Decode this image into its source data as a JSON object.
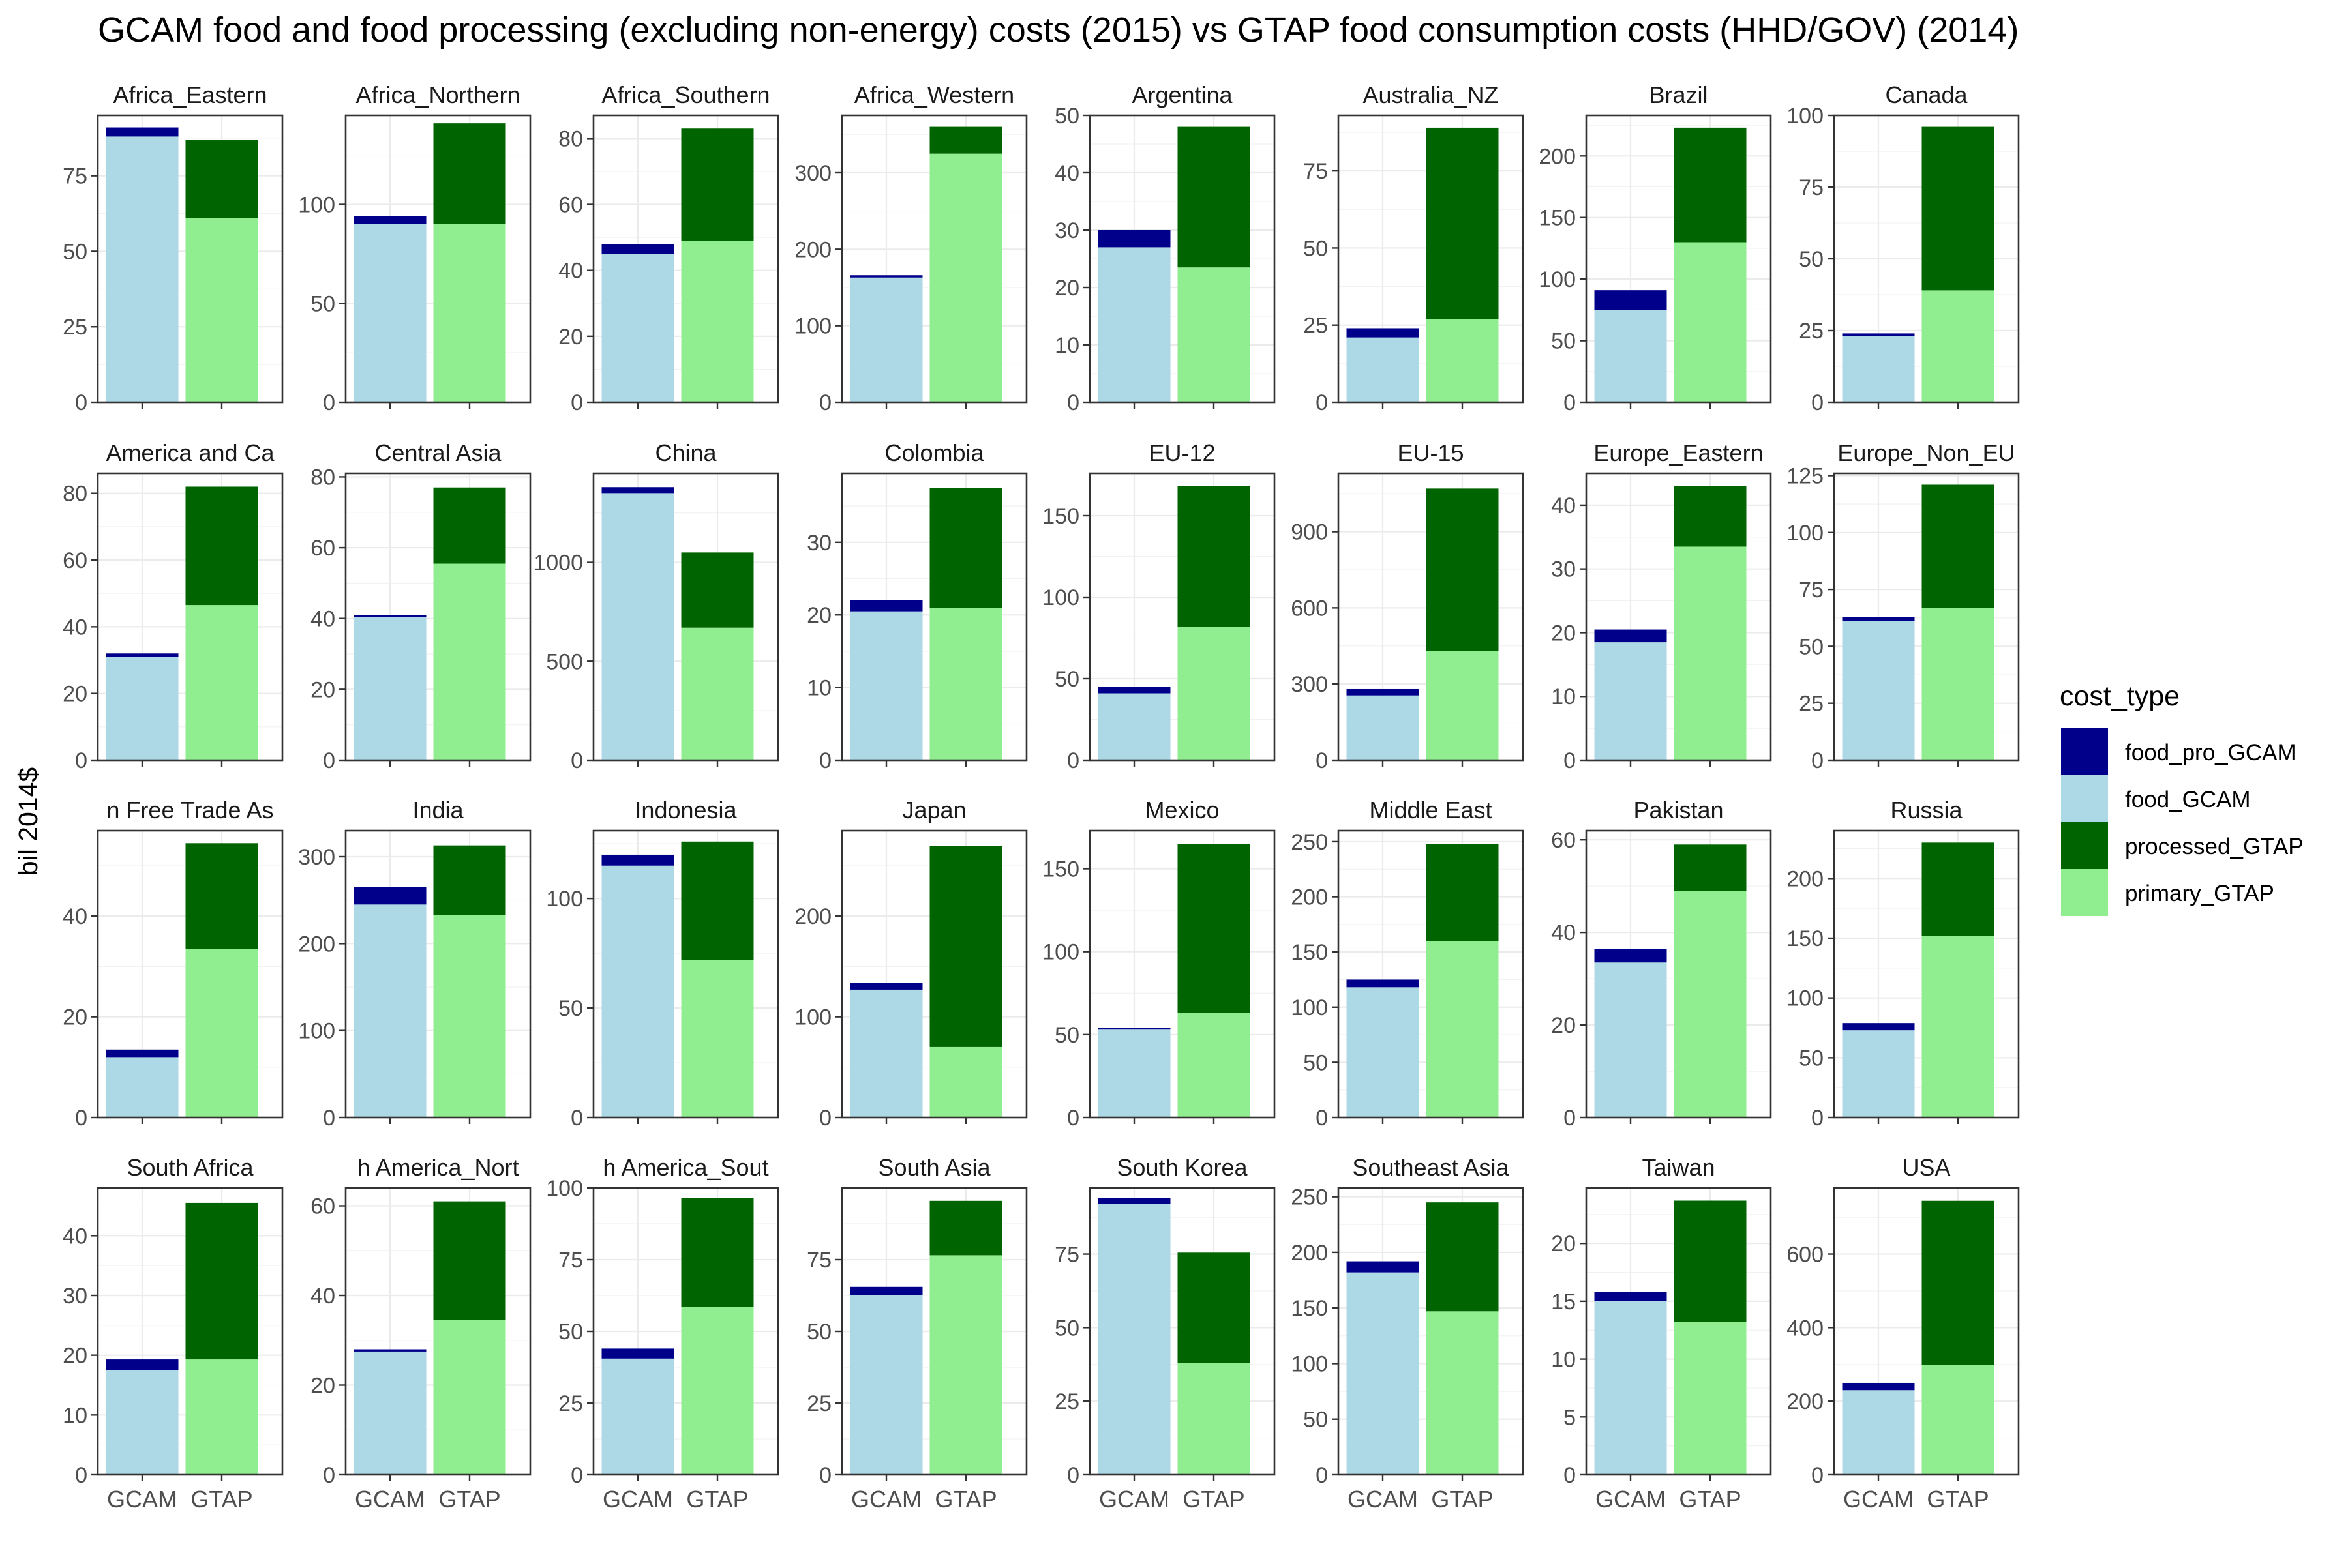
{
  "chart_data": {
    "type": "bar",
    "title": "GCAM food and food processing (excluding non-energy) costs (2015) vs GTAP food consumption costs (HHD/GOV) (2014)",
    "ylabel": "bil 2014$",
    "xlabel": "",
    "categories": [
      "GCAM",
      "GTAP"
    ],
    "stacking": "stacked",
    "grid": true,
    "legend": {
      "title": "cost_type",
      "placement": "right",
      "entries": [
        {
          "label": "food_pro_GCAM",
          "color": "#00008B"
        },
        {
          "label": "food_GCAM",
          "color": "#ADD8E6"
        },
        {
          "label": "processed_GTAP",
          "color": "#006400"
        },
        {
          "label": "primary_GTAP",
          "color": "#90EE90"
        }
      ]
    },
    "panels": [
      {
        "name": "Africa_Eastern",
        "ylim": [
          0,
          95
        ],
        "ticks": [
          0,
          25,
          50,
          75
        ],
        "gcam": {
          "food": 88,
          "food_pro": 3
        },
        "gtap": {
          "primary": 61,
          "processed": 26
        }
      },
      {
        "name": "Africa_Northern",
        "ylim": [
          0,
          145
        ],
        "ticks": [
          0,
          50,
          100
        ],
        "gcam": {
          "food": 90,
          "food_pro": 4
        },
        "gtap": {
          "primary": 90,
          "processed": 51
        }
      },
      {
        "name": "Africa_Southern",
        "ylim": [
          0,
          87
        ],
        "ticks": [
          0,
          20,
          40,
          60,
          80
        ],
        "gcam": {
          "food": 45,
          "food_pro": 3
        },
        "gtap": {
          "primary": 49,
          "processed": 34
        }
      },
      {
        "name": "Africa_Western",
        "ylim": [
          0,
          375
        ],
        "ticks": [
          0,
          100,
          200,
          300
        ],
        "gcam": {
          "food": 163,
          "food_pro": 3
        },
        "gtap": {
          "primary": 325,
          "processed": 35
        }
      },
      {
        "name": "Argentina",
        "ylim": [
          0,
          50
        ],
        "ticks": [
          0,
          10,
          20,
          30,
          40,
          50
        ],
        "gcam": {
          "food": 27,
          "food_pro": 3
        },
        "gtap": {
          "primary": 23.5,
          "processed": 24.5
        }
      },
      {
        "name": "Australia_NZ",
        "ylim": [
          0,
          93
        ],
        "ticks": [
          0,
          25,
          50,
          75
        ],
        "gcam": {
          "food": 21,
          "food_pro": 3
        },
        "gtap": {
          "primary": 27,
          "processed": 62
        }
      },
      {
        "name": "Brazil",
        "ylim": [
          0,
          233
        ],
        "ticks": [
          0,
          50,
          100,
          150,
          200
        ],
        "gcam": {
          "food": 75,
          "food_pro": 16
        },
        "gtap": {
          "primary": 130,
          "processed": 93
        }
      },
      {
        "name": "Canada",
        "ylim": [
          0,
          100
        ],
        "ticks": [
          0,
          25,
          50,
          75,
          100
        ],
        "gcam": {
          "food": 23,
          "food_pro": 1
        },
        "gtap": {
          "primary": 39,
          "processed": 57
        }
      },
      {
        "name": "America and Ca",
        "ylim": [
          0,
          86
        ],
        "ticks": [
          0,
          20,
          40,
          60,
          80
        ],
        "gcam": {
          "food": 31,
          "food_pro": 1
        },
        "gtap": {
          "primary": 46.5,
          "processed": 35.5
        }
      },
      {
        "name": "Central Asia",
        "ylim": [
          0,
          81
        ],
        "ticks": [
          0,
          20,
          40,
          60,
          80
        ],
        "gcam": {
          "food": 40.5,
          "food_pro": 0.5
        },
        "gtap": {
          "primary": 55.5,
          "processed": 21.5
        }
      },
      {
        "name": "China",
        "ylim": [
          0,
          1450
        ],
        "ticks": [
          0,
          500,
          1000
        ],
        "gcam": {
          "food": 1350,
          "food_pro": 30
        },
        "gtap": {
          "primary": 670,
          "processed": 380
        }
      },
      {
        "name": "Colombia",
        "ylim": [
          0,
          39.5
        ],
        "ticks": [
          0,
          10,
          20,
          30
        ],
        "gcam": {
          "food": 20.5,
          "food_pro": 1.5
        },
        "gtap": {
          "primary": 21,
          "processed": 16.5
        }
      },
      {
        "name": "EU-12",
        "ylim": [
          0,
          176
        ],
        "ticks": [
          0,
          50,
          100,
          150
        ],
        "gcam": {
          "food": 41,
          "food_pro": 4
        },
        "gtap": {
          "primary": 82,
          "processed": 86
        }
      },
      {
        "name": "EU-15",
        "ylim": [
          0,
          1130
        ],
        "ticks": [
          0,
          300,
          600,
          900
        ],
        "gcam": {
          "food": 255,
          "food_pro": 25
        },
        "gtap": {
          "primary": 430,
          "processed": 640
        }
      },
      {
        "name": "Europe_Eastern",
        "ylim": [
          0,
          45
        ],
        "ticks": [
          0,
          10,
          20,
          30,
          40
        ],
        "gcam": {
          "food": 18.5,
          "food_pro": 2
        },
        "gtap": {
          "primary": 33.5,
          "processed": 9.5
        }
      },
      {
        "name": "Europe_Non_EU",
        "ylim": [
          0,
          126
        ],
        "ticks": [
          0,
          25,
          50,
          75,
          100,
          125
        ],
        "gcam": {
          "food": 61,
          "food_pro": 2
        },
        "gtap": {
          "primary": 67,
          "processed": 54
        }
      },
      {
        "name": "n Free Trade As",
        "ylim": [
          0,
          57
        ],
        "ticks": [
          0,
          20,
          40
        ],
        "gcam": {
          "food": 12,
          "food_pro": 1.5
        },
        "gtap": {
          "primary": 33.5,
          "processed": 21
        }
      },
      {
        "name": "India",
        "ylim": [
          0,
          330
        ],
        "ticks": [
          0,
          100,
          200,
          300
        ],
        "gcam": {
          "food": 245,
          "food_pro": 20
        },
        "gtap": {
          "primary": 233,
          "processed": 80
        }
      },
      {
        "name": "Indonesia",
        "ylim": [
          0,
          131
        ],
        "ticks": [
          0,
          50,
          100
        ],
        "gcam": {
          "food": 115,
          "food_pro": 5
        },
        "gtap": {
          "primary": 72,
          "processed": 54
        }
      },
      {
        "name": "Japan",
        "ylim": [
          0,
          285
        ],
        "ticks": [
          0,
          100,
          200
        ],
        "gcam": {
          "food": 127,
          "food_pro": 7
        },
        "gtap": {
          "primary": 70,
          "processed": 200
        }
      },
      {
        "name": "Mexico",
        "ylim": [
          0,
          173
        ],
        "ticks": [
          0,
          50,
          100,
          150
        ],
        "gcam": {
          "food": 53,
          "food_pro": 1
        },
        "gtap": {
          "primary": 63,
          "processed": 102
        }
      },
      {
        "name": "Middle East",
        "ylim": [
          0,
          260
        ],
        "ticks": [
          0,
          50,
          100,
          150,
          200,
          250
        ],
        "gcam": {
          "food": 118,
          "food_pro": 7
        },
        "gtap": {
          "primary": 160,
          "processed": 88
        }
      },
      {
        "name": "Pakistan",
        "ylim": [
          0,
          62
        ],
        "ticks": [
          0,
          20,
          40,
          60
        ],
        "gcam": {
          "food": 33.5,
          "food_pro": 3
        },
        "gtap": {
          "primary": 49,
          "processed": 10
        }
      },
      {
        "name": "Russia",
        "ylim": [
          0,
          240
        ],
        "ticks": [
          0,
          50,
          100,
          150,
          200
        ],
        "gcam": {
          "food": 73,
          "food_pro": 6
        },
        "gtap": {
          "primary": 152,
          "processed": 78
        }
      },
      {
        "name": "South Africa",
        "ylim": [
          0,
          48
        ],
        "ticks": [
          0,
          10,
          20,
          30,
          40
        ],
        "gcam": {
          "food": 17.5,
          "food_pro": 1.8
        },
        "gtap": {
          "primary": 19.3,
          "processed": 26.2
        }
      },
      {
        "name": "h America_Nort",
        "ylim": [
          0,
          64
        ],
        "ticks": [
          0,
          20,
          40,
          60
        ],
        "gcam": {
          "food": 27.5,
          "food_pro": 0.5
        },
        "gtap": {
          "primary": 34.5,
          "processed": 26.5
        }
      },
      {
        "name": "h America_Sout",
        "ylim": [
          0,
          100
        ],
        "ticks": [
          0,
          25,
          50,
          75,
          100
        ],
        "gcam": {
          "food": 40.5,
          "food_pro": 3.5
        },
        "gtap": {
          "primary": 58.5,
          "processed": 38
        }
      },
      {
        "name": "South Asia",
        "ylim": [
          0,
          100
        ],
        "ticks": [
          0,
          25,
          50,
          75
        ],
        "gcam": {
          "food": 62.5,
          "food_pro": 3
        },
        "gtap": {
          "primary": 76.5,
          "processed": 19
        }
      },
      {
        "name": "South Korea",
        "ylim": [
          0,
          97.5
        ],
        "ticks": [
          0,
          25,
          50,
          75
        ],
        "gcam": {
          "food": 92,
          "food_pro": 2
        },
        "gtap": {
          "primary": 38,
          "processed": 37.5
        }
      },
      {
        "name": "Southeast Asia",
        "ylim": [
          0,
          258
        ],
        "ticks": [
          0,
          50,
          100,
          150,
          200,
          250
        ],
        "gcam": {
          "food": 182,
          "food_pro": 10
        },
        "gtap": {
          "primary": 147,
          "processed": 98
        }
      },
      {
        "name": "Taiwan",
        "ylim": [
          0,
          24.8
        ],
        "ticks": [
          0,
          5,
          10,
          15,
          20
        ],
        "gcam": {
          "food": 15,
          "food_pro": 0.8
        },
        "gtap": {
          "primary": 13.2,
          "processed": 10.5
        }
      },
      {
        "name": "USA",
        "ylim": [
          0,
          780
        ],
        "ticks": [
          0,
          200,
          400,
          600
        ],
        "gcam": {
          "food": 230,
          "food_pro": 20
        },
        "gtap": {
          "primary": 298,
          "processed": 447
        }
      }
    ]
  }
}
